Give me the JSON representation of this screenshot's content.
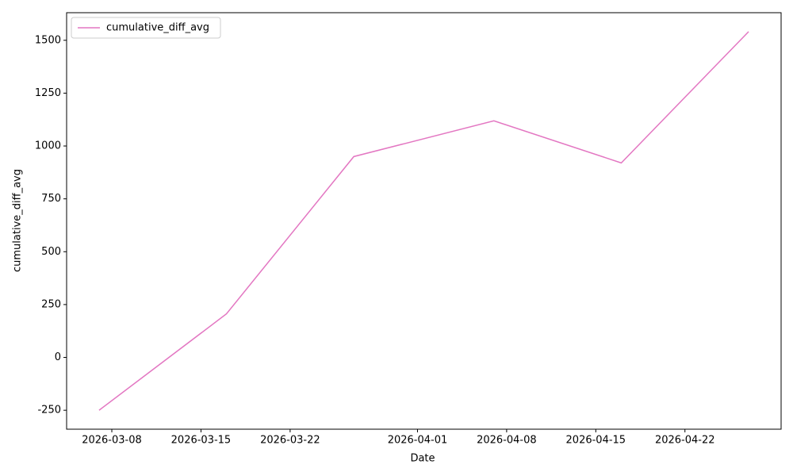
{
  "chart_data": {
    "type": "line",
    "xlabel": "Date",
    "ylabel": "cumulative_diff_avg",
    "x": [
      "2026-03-07",
      "2026-03-17",
      "2026-03-27",
      "2026-04-07",
      "2026-04-17",
      "2026-04-27"
    ],
    "series": [
      {
        "name": "cumulative_diff_avg",
        "color": "#e377c2",
        "values": [
          -250,
          206,
          950,
          1119,
          920,
          1541
        ]
      }
    ],
    "xlim": [
      "2026-03-04T10:48",
      "2026-04-29T13:12"
    ],
    "xticks": [
      "2026-03-08",
      "2026-03-15",
      "2026-03-22",
      "2026-04-01",
      "2026-04-08",
      "2026-04-15",
      "2026-04-22"
    ],
    "ylim": [
      -339.5,
      1630.5
    ],
    "yticks": [
      -250,
      0,
      250,
      500,
      750,
      1000,
      1250,
      1500
    ],
    "grid": false,
    "legend": "upper-left"
  }
}
